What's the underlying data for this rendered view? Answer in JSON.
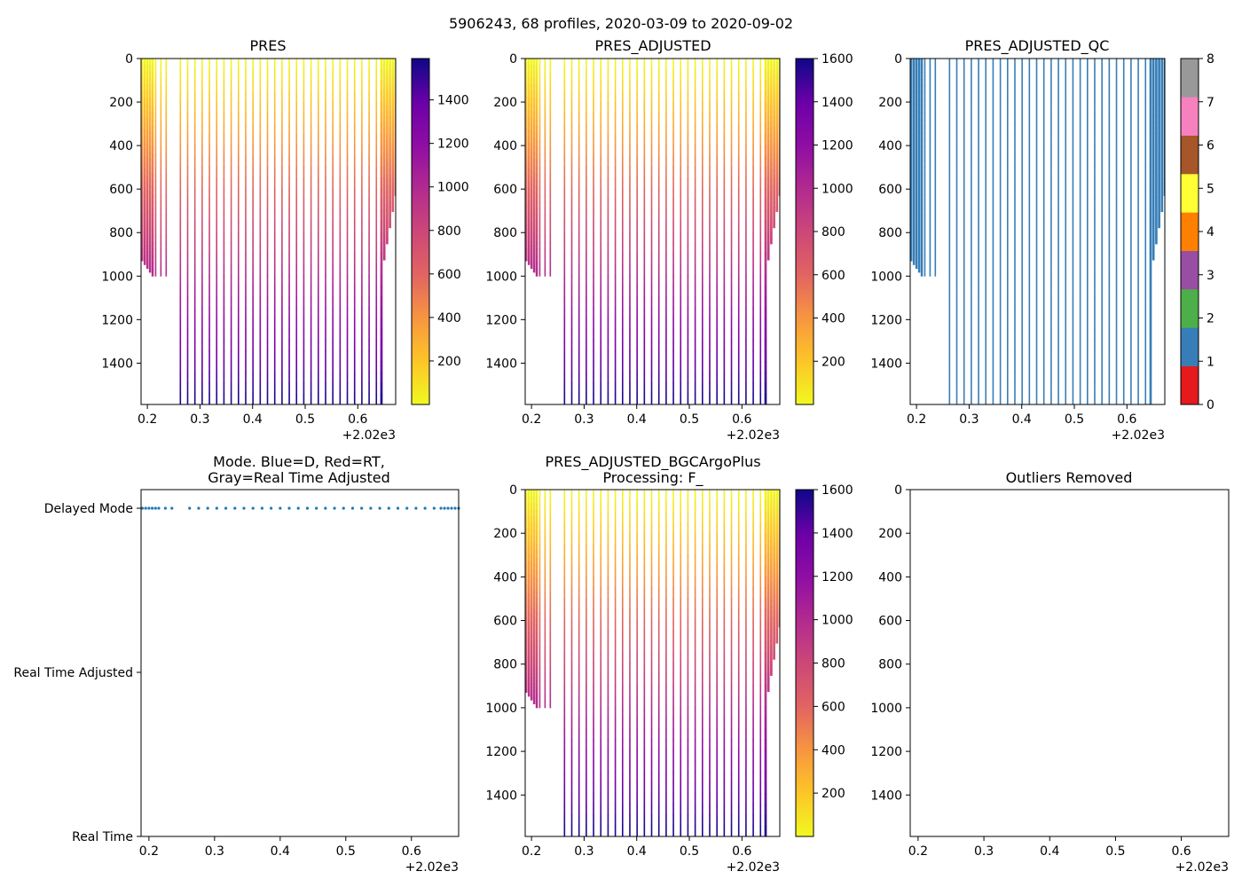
{
  "chart_data": {
    "suptitle": "5906243, 68 profiles, 2020-03-09 to 2020-09-02",
    "x_offset_label": "+2.02e3",
    "x_ticks": [
      "0.2",
      "0.3",
      "0.4",
      "0.5",
      "0.6"
    ],
    "x_tick_values": [
      0.2,
      0.3,
      0.4,
      0.5,
      0.6
    ],
    "xlim": [
      0.188,
      0.672
    ],
    "y_ticks": [
      "0",
      "200",
      "400",
      "600",
      "800",
      "1000",
      "1200",
      "1400"
    ],
    "y_tick_values": [
      0,
      200,
      400,
      600,
      800,
      1000,
      1200,
      1400
    ],
    "ylim": [
      1590,
      0
    ],
    "profiles": {
      "dense_start": {
        "x_range": [
          0.19,
          0.21
        ],
        "max_pres": [
          930,
          1000
        ]
      },
      "sparse_early_x": [
        0.215,
        0.225,
        0.235
      ],
      "sparse_early_max_pres": 1000,
      "regular_x_start": 0.262,
      "regular_x_step": 0.0138,
      "regular_count": 28,
      "regular_max_pres": 1590,
      "dense_end": {
        "x_range": [
          0.645,
          0.672
        ],
        "max_pres": [
          630,
          1000
        ]
      }
    },
    "panels": [
      {
        "type": "heatmap",
        "title": "PRES",
        "colormap": "plasma_r",
        "colorbar_ticks": [
          "200",
          "400",
          "600",
          "800",
          "1000",
          "1200",
          "1400"
        ],
        "colorbar_tick_values": [
          200,
          400,
          600,
          800,
          1000,
          1200,
          1400
        ],
        "colorbar_range": [
          0,
          1590
        ]
      },
      {
        "type": "heatmap",
        "title": "PRES_ADJUSTED",
        "colormap": "plasma_r",
        "colorbar_ticks": [
          "200",
          "400",
          "600",
          "800",
          "1000",
          "1200",
          "1400",
          "1600"
        ],
        "colorbar_tick_values": [
          200,
          400,
          600,
          800,
          1000,
          1200,
          1400,
          1600
        ],
        "colorbar_range": [
          0,
          1600
        ]
      },
      {
        "type": "heatmap",
        "title": "PRES_ADJUSTED_QC",
        "colormap": "qc",
        "qc_value": 1,
        "qc_color": "#377eb8",
        "colorbar_ticks": [
          "0",
          "1",
          "2",
          "3",
          "4",
          "5",
          "6",
          "7",
          "8"
        ],
        "colorbar_tick_values": [
          0,
          1,
          2,
          3,
          4,
          5,
          6,
          7,
          8
        ],
        "colorbar_range": [
          0,
          8
        ],
        "qc_colors": [
          "#e41a1c",
          "#377eb8",
          "#4daf4a",
          "#984ea3",
          "#ff7f00",
          "#ffff33",
          "#a65628",
          "#f781bf",
          "#999999"
        ]
      },
      {
        "type": "scatter",
        "title": "Mode. Blue=D, Red=RT,\nGray=Real Time Adjusted",
        "title_lines": [
          "Mode. Blue=D, Red=RT,",
          "Gray=Real Time Adjusted"
        ],
        "y_categories": [
          "Delayed Mode",
          "Real Time Adjusted",
          "Real Time"
        ],
        "marker_color": "#1f77b4",
        "series_value": "Delayed Mode"
      },
      {
        "type": "heatmap",
        "title": "PRES_ADJUSTED_BGCArgoPlus\nProcessing: F_",
        "title_lines": [
          "PRES_ADJUSTED_BGCArgoPlus",
          "Processing: F_"
        ],
        "colormap": "plasma_r",
        "colorbar_ticks": [
          "200",
          "400",
          "600",
          "800",
          "1000",
          "1200",
          "1400",
          "1600"
        ],
        "colorbar_tick_values": [
          200,
          400,
          600,
          800,
          1000,
          1200,
          1400,
          1600
        ],
        "colorbar_range": [
          0,
          1600
        ]
      },
      {
        "type": "heatmap",
        "title": "Outliers Removed",
        "empty": true
      }
    ]
  }
}
